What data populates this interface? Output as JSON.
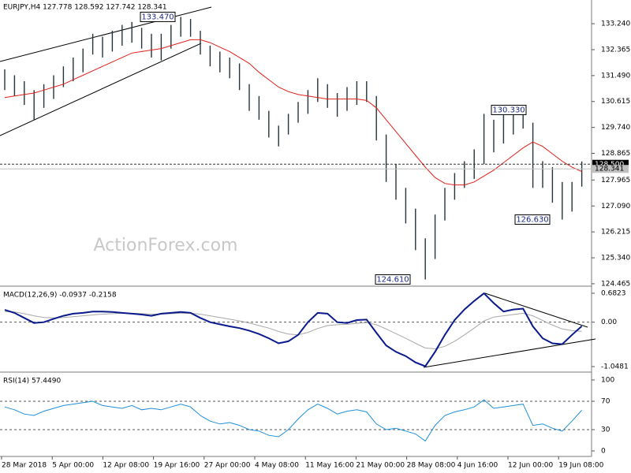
{
  "chart_data": [
    {
      "type": "ohlc",
      "title": "EURJPY,H4  127.778 128.592 127.742 128.341",
      "watermark": "ActionForex.com",
      "color": "#24343a",
      "high": [
        131.7,
        131.5,
        131.3,
        131.0,
        131.2,
        131.5,
        131.8,
        132.1,
        132.4,
        132.9,
        132.8,
        133.0,
        133.2,
        133.3,
        133.1,
        132.9,
        132.9,
        133.2,
        133.47,
        133.4,
        133.0,
        132.5,
        132.3,
        132.1,
        131.9,
        131.2,
        130.8,
        130.3,
        129.8,
        130.2,
        130.6,
        131.0,
        131.4,
        131.2,
        130.9,
        131.1,
        131.3,
        131.3,
        130.8,
        129.5,
        128.5,
        127.7,
        127.0,
        126.0,
        126.8,
        127.7,
        128.2,
        128.6,
        129.0,
        130.2,
        130.0,
        130.2,
        130.3,
        130.33,
        129.9,
        128.6,
        128.4,
        127.9,
        127.9,
        128.592
      ],
      "low": [
        131.0,
        130.8,
        130.5,
        130.0,
        130.4,
        130.7,
        131.1,
        131.3,
        131.6,
        132.2,
        132.1,
        132.3,
        132.5,
        132.6,
        132.4,
        132.1,
        132.0,
        132.4,
        132.8,
        132.8,
        132.2,
        131.8,
        131.6,
        131.4,
        131.0,
        130.3,
        130.0,
        129.4,
        129.1,
        129.5,
        129.9,
        130.2,
        130.6,
        130.4,
        130.1,
        130.3,
        130.5,
        130.6,
        129.3,
        127.9,
        127.3,
        126.5,
        125.6,
        124.61,
        125.3,
        126.6,
        127.3,
        127.7,
        128.0,
        128.5,
        128.9,
        129.2,
        129.5,
        129.7,
        127.7,
        127.7,
        127.2,
        126.63,
        126.9,
        127.742
      ],
      "ma": {
        "color": "#e0201b",
        "values": [
          130.75,
          130.8,
          130.85,
          130.9,
          131.0,
          131.1,
          131.2,
          131.35,
          131.5,
          131.65,
          131.8,
          131.95,
          132.1,
          132.25,
          132.3,
          132.35,
          132.4,
          132.5,
          132.6,
          132.7,
          132.7,
          132.6,
          132.45,
          132.3,
          132.1,
          131.9,
          131.6,
          131.35,
          131.1,
          130.95,
          130.85,
          130.8,
          130.75,
          130.7,
          130.7,
          130.7,
          130.7,
          130.65,
          130.4,
          130.0,
          129.6,
          129.2,
          128.8,
          128.4,
          128.05,
          127.85,
          127.8,
          127.8,
          127.9,
          128.1,
          128.3,
          128.55,
          128.8,
          129.05,
          129.25,
          129.1,
          128.85,
          128.6,
          128.4,
          128.25
        ]
      },
      "ylim": [
        124.41,
        134.04
      ],
      "yticks": [
        {
          "value": 133.24,
          "label": "133.240"
        },
        132.365,
        {
          "value": 131.49,
          "label": "131.490"
        },
        130.615,
        {
          "value": 129.74,
          "label": "129.740"
        },
        128.865,
        127.965,
        {
          "value": 127.09,
          "label": "127.090"
        },
        126.215,
        {
          "value": 125.34,
          "label": "125.340"
        },
        124.465
      ],
      "hline": {
        "value": 128.5,
        "label": "128.500"
      },
      "last": {
        "value": 128.341,
        "label": "128.341"
      },
      "annotations": [
        {
          "value": 133.47,
          "label": "133.470"
        },
        {
          "value": 130.33,
          "label": "130.330"
        },
        {
          "value": 126.63,
          "label": "126.630"
        },
        {
          "value": 124.61,
          "label": "124.610"
        }
      ]
    },
    {
      "type": "macd",
      "title": "MACD(12,26,9) -0.0937 -0.2158",
      "series": [
        {
          "color": "#0a1a8c",
          "values": [
            0.29,
            0.22,
            0.1,
            -0.02,
            0.0,
            0.08,
            0.15,
            0.2,
            0.22,
            0.25,
            0.25,
            0.24,
            0.22,
            0.2,
            0.18,
            0.15,
            0.2,
            0.22,
            0.24,
            0.22,
            0.1,
            0.0,
            -0.05,
            -0.1,
            -0.14,
            -0.2,
            -0.28,
            -0.38,
            -0.5,
            -0.45,
            -0.3,
            0.0,
            0.22,
            0.2,
            0.0,
            -0.02,
            0.05,
            0.06,
            -0.25,
            -0.55,
            -0.7,
            -0.8,
            -0.95,
            -1.04,
            -0.7,
            -0.3,
            0.05,
            0.3,
            0.5,
            0.68,
            0.45,
            0.25,
            0.3,
            0.32,
            -0.1,
            -0.38,
            -0.5,
            -0.52,
            -0.3,
            -0.0937
          ]
        },
        {
          "color": "#a8a8a8",
          "values": [
            0.25,
            0.24,
            0.2,
            0.15,
            0.11,
            0.1,
            0.11,
            0.13,
            0.15,
            0.17,
            0.19,
            0.2,
            0.21,
            0.21,
            0.2,
            0.19,
            0.19,
            0.2,
            0.21,
            0.21,
            0.19,
            0.15,
            0.11,
            0.07,
            0.03,
            -0.02,
            -0.08,
            -0.14,
            -0.22,
            -0.28,
            -0.3,
            -0.24,
            -0.15,
            -0.08,
            -0.06,
            -0.05,
            -0.03,
            -0.01,
            -0.06,
            -0.16,
            -0.27,
            -0.38,
            -0.5,
            -0.61,
            -0.63,
            -0.57,
            -0.45,
            -0.3,
            -0.14,
            0.03,
            0.12,
            0.15,
            0.18,
            0.21,
            0.15,
            0.04,
            -0.07,
            -0.16,
            -0.2,
            -0.2158
          ]
        }
      ],
      "ylim": [
        -1.1412,
        0.8127
      ],
      "yticks": [
        0.6823,
        {
          "value": 0,
          "label": "0.00"
        },
        -1.0481
      ],
      "grid": true
    },
    {
      "type": "rsi",
      "title": "RSI(14) 57.4490",
      "color": "#1e8fd8",
      "values": [
        62,
        58,
        52,
        50,
        56,
        60,
        64,
        66,
        68,
        70,
        64,
        62,
        60,
        64,
        58,
        60,
        58,
        62,
        66,
        62,
        50,
        42,
        38,
        40,
        36,
        30,
        28,
        22,
        20,
        30,
        45,
        58,
        66,
        60,
        52,
        56,
        58,
        55,
        38,
        30,
        32,
        28,
        24,
        14,
        36,
        50,
        55,
        58,
        62,
        72,
        60,
        62,
        64,
        66,
        36,
        38,
        32,
        28,
        42,
        57.449
      ],
      "ylim": [
        -6.7,
        108.9
      ],
      "yticks": [
        100,
        70,
        30,
        0
      ],
      "grid": true,
      "x_labels": [
        "28 Mar 2018",
        "5 Apr 00:00",
        "12 Apr 08:00",
        "19 Apr 16:00",
        "27 Apr 00:00",
        "4 May 08:00",
        "11 May 16:00",
        "21 May 00:00",
        "28 May 08:00",
        "4 Jun 16:00",
        "12 Jun 00:00",
        "19 Jun 08:00"
      ]
    }
  ]
}
